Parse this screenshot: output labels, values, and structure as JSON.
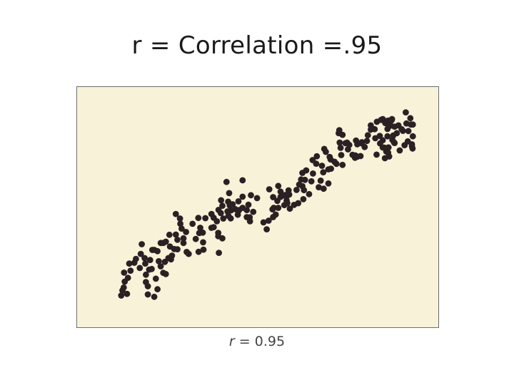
{
  "slide": {
    "title": "r = Correlation =.95"
  },
  "chart_data": {
    "type": "scatter",
    "title": "",
    "xlabel": "",
    "ylabel": "",
    "xlim": [
      0,
      100
    ],
    "ylim": [
      0,
      100
    ],
    "grid": false,
    "legend": "none",
    "caption": {
      "variable": "r",
      "operator": "=",
      "value": "0.95"
    },
    "point_color": "#2a2123",
    "background_color": "#f8f2d9",
    "series": [
      {
        "points": [
          [
            7.5,
            8.3
          ],
          [
            7.9,
            10.7
          ],
          [
            8.3,
            12.1
          ],
          [
            8.6,
            14.9
          ],
          [
            9.3,
            9.1
          ],
          [
            9.6,
            16.7
          ],
          [
            8.4,
            19.2
          ],
          [
            10.4,
            20.1
          ],
          [
            11.6,
            23.9
          ],
          [
            10.0,
            23.5
          ],
          [
            12.1,
            25.7
          ],
          [
            13.3,
            21.4
          ],
          [
            13.6,
            28.1
          ],
          [
            13.9,
            32.7
          ],
          [
            15.0,
            23.5
          ],
          [
            15.8,
            12.7
          ],
          [
            15.2,
            18.2
          ],
          [
            16.2,
            20.6
          ],
          [
            17.0,
            20.9
          ],
          [
            16.5,
            25.2
          ],
          [
            14.8,
            26.1
          ],
          [
            17.2,
            30.0
          ],
          [
            17.8,
            30.0
          ],
          [
            18.8,
            29.4
          ],
          [
            15.8,
            8.8
          ],
          [
            15.2,
            14.7
          ],
          [
            17.8,
            7.7
          ],
          [
            18.8,
            11.3
          ],
          [
            18.3,
            16.3
          ],
          [
            19.8,
            33.3
          ],
          [
            20.6,
            33.3
          ],
          [
            19.8,
            22.2
          ],
          [
            20.6,
            19.1
          ],
          [
            19.2,
            24.6
          ],
          [
            21.1,
            24.3
          ],
          [
            21.4,
            18.5
          ],
          [
            22.2,
            26.1
          ],
          [
            22.7,
            31.6
          ],
          [
            23.0,
            25.5
          ],
          [
            21.4,
            33.9
          ],
          [
            23.3,
            27.3
          ],
          [
            24.5,
            37.3
          ],
          [
            22.5,
            37.2
          ],
          [
            24.0,
            30.4
          ],
          [
            25.0,
            30.3
          ],
          [
            25.0,
            34.8
          ],
          [
            25.9,
            42.4
          ],
          [
            26.3,
            40.1
          ],
          [
            24.5,
            47.1
          ],
          [
            25.8,
            44.9
          ],
          [
            26.9,
            35.5
          ],
          [
            26.9,
            33.3
          ],
          [
            28.5,
            28.1
          ],
          [
            27.9,
            29.0
          ],
          [
            27.7,
            38.5
          ],
          [
            29.7,
            42.4
          ],
          [
            30.7,
            35.2
          ],
          [
            31.5,
            45.2
          ],
          [
            31.8,
            38.0
          ],
          [
            33.1,
            30.1
          ],
          [
            31.6,
            29.1
          ],
          [
            32.1,
            40.5
          ],
          [
            32.9,
            38.2
          ],
          [
            33.0,
            33.6
          ],
          [
            33.7,
            45.1
          ],
          [
            35.6,
            40.5
          ],
          [
            35.6,
            47.1
          ],
          [
            36.3,
            45.3
          ],
          [
            36.3,
            40.8
          ],
          [
            37.7,
            38.1
          ],
          [
            37.7,
            36.5
          ],
          [
            37.9,
            28.6
          ],
          [
            37.3,
            43.6
          ],
          [
            39.0,
            35.5
          ],
          [
            39.3,
            44.9
          ],
          [
            37.8,
            49.0
          ],
          [
            39.0,
            51.0
          ],
          [
            38.5,
            47.5
          ],
          [
            40.6,
            48.3
          ],
          [
            40.9,
            46.2
          ],
          [
            41.3,
            51.1
          ],
          [
            41.6,
            45.0
          ],
          [
            42.2,
            51.7
          ],
          [
            43.9,
            48.3
          ],
          [
            38.6,
            53.6
          ],
          [
            40.8,
            52.9
          ],
          [
            43.0,
            49.4
          ],
          [
            43.8,
            46.7
          ],
          [
            44.2,
            48.9
          ],
          [
            40.3,
            62.3
          ],
          [
            41.1,
            57.0
          ],
          [
            41.5,
            51.7
          ],
          [
            41.7,
            48.8
          ],
          [
            44.0,
            53.1
          ],
          [
            45.3,
            50.0
          ],
          [
            46.6,
            45.6
          ],
          [
            47.1,
            51.5
          ],
          [
            47.5,
            45.5
          ],
          [
            48.6,
            48.1
          ],
          [
            45.3,
            63.1
          ],
          [
            46.6,
            48.9
          ],
          [
            45.3,
            55.3
          ],
          [
            47.9,
            56.0
          ],
          [
            47.6,
            43.6
          ],
          [
            49.8,
            54.6
          ],
          [
            51.8,
            43.1
          ],
          [
            52.8,
            39.8
          ],
          [
            53.4,
            43.9
          ],
          [
            54.8,
            45.6
          ],
          [
            55.6,
            46.8
          ],
          [
            54.6,
            49.3
          ],
          [
            55.0,
            50.0
          ],
          [
            54.8,
            55.1
          ],
          [
            53.6,
            58.8
          ],
          [
            56.1,
            53.3
          ],
          [
            56.4,
            50.0
          ],
          [
            57.1,
            55.2
          ],
          [
            57.1,
            57.7
          ],
          [
            56.4,
            60.4
          ],
          [
            58.3,
            55.9
          ],
          [
            58.6,
            56.1
          ],
          [
            58.3,
            51.3
          ],
          [
            59.0,
            53.5
          ],
          [
            59.2,
            55.8
          ],
          [
            59.8,
            56.3
          ],
          [
            59.2,
            52.2
          ],
          [
            60.0,
            49.6
          ],
          [
            59.6,
            58.3
          ],
          [
            61.3,
            51.4
          ],
          [
            62.6,
            52.2
          ],
          [
            62.1,
            58.5
          ],
          [
            62.9,
            61.1
          ],
          [
            63.5,
            63.5
          ],
          [
            64.4,
            58.4
          ],
          [
            66.0,
            56.5
          ],
          [
            64.7,
            63.3
          ],
          [
            63.9,
            66.6
          ],
          [
            65.1,
            67.8
          ],
          [
            63.9,
            60.3
          ],
          [
            64.2,
            54.1
          ],
          [
            67.2,
            66.3
          ],
          [
            68.4,
            74.5
          ],
          [
            67.1,
            72.7
          ],
          [
            68.2,
            71.0
          ],
          [
            66.7,
            62.6
          ],
          [
            69.6,
            62.9
          ],
          [
            70.5,
            59.1
          ],
          [
            69.0,
            59.8
          ],
          [
            70.0,
            70.0
          ],
          [
            70.4,
            66.9
          ],
          [
            72.0,
            68.3
          ],
          [
            72.0,
            61.6
          ],
          [
            72.8,
            68.6
          ],
          [
            71.2,
            76.6
          ],
          [
            70.7,
            78.0
          ],
          [
            72.7,
            73.0
          ],
          [
            73.9,
            71.9
          ],
          [
            72.4,
            74.2
          ],
          [
            74.5,
            70.9
          ],
          [
            76.0,
            75.1
          ],
          [
            75.8,
            78.5
          ],
          [
            76.4,
            70.4
          ],
          [
            78.5,
            79.9
          ],
          [
            78.1,
            77.8
          ],
          [
            75.2,
            85.5
          ],
          [
            77.3,
            80.7
          ],
          [
            75.4,
            86.9
          ],
          [
            75.5,
            81.0
          ],
          [
            76.4,
            84.7
          ],
          [
            77.8,
            81.0
          ],
          [
            79.5,
            75.2
          ],
          [
            80.3,
            73.8
          ],
          [
            81.0,
            74.3
          ],
          [
            80.4,
            74.9
          ],
          [
            82.0,
            74.6
          ],
          [
            82.4,
            80.6
          ],
          [
            80.6,
            82.0
          ],
          [
            81.0,
            80.2
          ],
          [
            82.4,
            81.2
          ],
          [
            83.3,
            78.9
          ],
          [
            84.0,
            81.8
          ],
          [
            84.3,
            84.5
          ],
          [
            85.2,
            87.2
          ],
          [
            86.4,
            87.4
          ],
          [
            86.6,
            83.1
          ],
          [
            85.2,
            89.2
          ],
          [
            87.1,
            90.9
          ],
          [
            88.0,
            84.2
          ],
          [
            88.9,
            82.1
          ],
          [
            87.0,
            75.3
          ],
          [
            88.9,
            78.7
          ],
          [
            89.5,
            78.6
          ],
          [
            89.6,
            73.6
          ],
          [
            88.1,
            80.6
          ],
          [
            90.0,
            76.8
          ],
          [
            90.7,
            78.7
          ],
          [
            88.9,
            92.2
          ],
          [
            90.4,
            87.5
          ],
          [
            88.4,
            91.8
          ],
          [
            90.6,
            76.2
          ],
          [
            90.4,
            84.0
          ],
          [
            90.9,
            74.4
          ],
          [
            91.7,
            91.7
          ],
          [
            92.4,
            81.2
          ],
          [
            91.9,
            82.3
          ],
          [
            92.2,
            84.4
          ],
          [
            92.6,
            80.8
          ],
          [
            94.2,
            77.3
          ],
          [
            95.7,
            79.8
          ],
          [
            96.7,
            81.6
          ],
          [
            98.0,
            80.2
          ],
          [
            98.3,
            84.0
          ],
          [
            98.3,
            89.6
          ],
          [
            98.0,
            79.3
          ],
          [
            98.2,
            78.2
          ],
          [
            95.2,
            86.6
          ],
          [
            96.3,
            90.1
          ],
          [
            96.1,
            95.4
          ],
          [
            93.8,
            89.2
          ],
          [
            91.8,
            92.2
          ],
          [
            94.8,
            87.4
          ],
          [
            97.5,
            92.6
          ],
          [
            96.9,
            86.5
          ],
          [
            97.7,
            89.6
          ],
          [
            89.7,
            90.3
          ],
          [
            90.8,
            88.9
          ],
          [
            93.3,
            85.5
          ],
          [
            92.6,
            88.6
          ],
          [
            91.4,
            89.1
          ],
          [
            90.6,
            91.5
          ]
        ]
      }
    ]
  }
}
